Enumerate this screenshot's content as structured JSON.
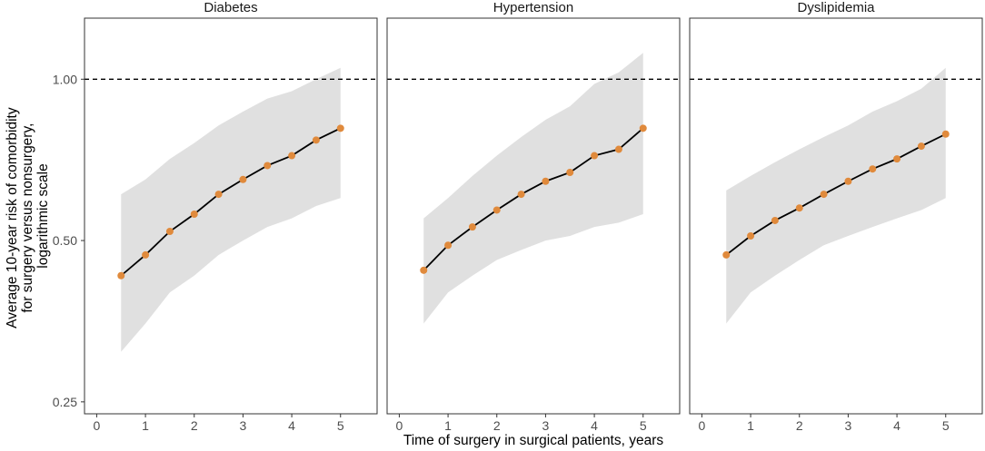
{
  "chart_data": {
    "type": "line",
    "xlabel": "Time of surgery in surgical patients, years",
    "ylabel_lines": [
      "Average 10-year risk of comorbidity",
      "for surgery versus nonsurgery,",
      "logarithmic scale"
    ],
    "y_scale": "log",
    "ylim": [
      0.2375,
      1.3
    ],
    "xlim": [
      -0.25,
      5.75
    ],
    "x_ticks": [
      0,
      1,
      2,
      3,
      4,
      5
    ],
    "y_ticks": [
      0.25,
      0.5,
      1.0
    ],
    "y_tick_labels": [
      "0.25",
      "0.50",
      "1.00"
    ],
    "reference_line": 1.0,
    "colors": {
      "point": "#e08a3c",
      "line": "#000000",
      "ribbon": "#e0e0e0",
      "reference": "#000000"
    },
    "panels": [
      {
        "title": "Diabetes",
        "x": [
          0.5,
          1,
          1.5,
          2,
          2.5,
          3,
          3.5,
          4,
          4.5,
          5
        ],
        "y": [
          0.43,
          0.47,
          0.52,
          0.56,
          0.61,
          0.65,
          0.69,
          0.72,
          0.77,
          0.81
        ],
        "lower": [
          0.31,
          0.35,
          0.4,
          0.43,
          0.47,
          0.5,
          0.53,
          0.55,
          0.58,
          0.6
        ],
        "upper": [
          0.61,
          0.65,
          0.71,
          0.76,
          0.82,
          0.87,
          0.92,
          0.95,
          1.0,
          1.05
        ]
      },
      {
        "title": "Hypertension",
        "x": [
          0.5,
          1,
          1.5,
          2,
          2.5,
          3,
          3.5,
          4,
          4.5,
          5
        ],
        "y": [
          0.44,
          0.49,
          0.53,
          0.57,
          0.61,
          0.645,
          0.67,
          0.72,
          0.74,
          0.81
        ],
        "lower": [
          0.35,
          0.4,
          0.43,
          0.46,
          0.48,
          0.5,
          0.51,
          0.53,
          0.54,
          0.56
        ],
        "upper": [
          0.55,
          0.6,
          0.66,
          0.72,
          0.78,
          0.84,
          0.89,
          0.98,
          1.03,
          1.12
        ]
      },
      {
        "title": "Dyslipidemia",
        "x": [
          0.5,
          1,
          1.5,
          2,
          2.5,
          3,
          3.5,
          4,
          4.5,
          5
        ],
        "y": [
          0.47,
          0.51,
          0.545,
          0.575,
          0.61,
          0.645,
          0.68,
          0.71,
          0.75,
          0.79
        ],
        "lower": [
          0.35,
          0.4,
          0.43,
          0.46,
          0.49,
          0.51,
          0.53,
          0.55,
          0.57,
          0.6
        ],
        "upper": [
          0.62,
          0.66,
          0.7,
          0.74,
          0.78,
          0.82,
          0.87,
          0.91,
          0.96,
          1.05
        ]
      }
    ]
  }
}
